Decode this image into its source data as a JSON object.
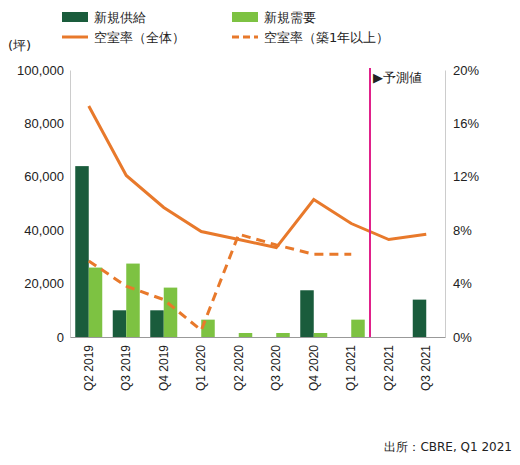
{
  "chart_data": {
    "type": "bar",
    "y_label": "(坪)",
    "source": "出所：CBRE, Q1 2021",
    "legend": "top",
    "grid": false,
    "categories": [
      "Q2 2019",
      "Q3 2019",
      "Q4 2019",
      "Q1 2020",
      "Q2 2020",
      "Q3 2020",
      "Q4 2020",
      "Q1 2021",
      "Q2 2021",
      "Q3 2021"
    ],
    "ylim": [
      0,
      100000
    ],
    "yticks": [
      0,
      {
        "value": 20000,
        "label": "20,000"
      },
      {
        "value": 40000,
        "label": "40,000"
      },
      {
        "value": 60000,
        "label": "60,000"
      },
      {
        "value": 80000,
        "label": "80,000"
      },
      {
        "value": 100000,
        "label": "100,000"
      }
    ],
    "y2lim": [
      0,
      20
    ],
    "y2ticks": [
      {
        "value": 0,
        "label": "0%"
      },
      {
        "value": 4,
        "label": "4%"
      },
      {
        "value": 8,
        "label": "8%"
      },
      {
        "value": 12,
        "label": "12%"
      },
      {
        "value": 16,
        "label": "16%"
      },
      {
        "value": 20,
        "label": "20%"
      }
    ],
    "annotations": [
      {
        "text": "▶予測値",
        "x": "Q2 2021"
      }
    ],
    "series": [
      {
        "name": "新規供給",
        "type": "bar",
        "color": "#1a5c3c",
        "values": [
          64000,
          10000,
          10000,
          0,
          0,
          0,
          17500,
          0,
          0,
          14000
        ]
      },
      {
        "name": "新規需要",
        "type": "bar",
        "color": "#7dc242",
        "values": [
          26000,
          27500,
          18500,
          6500,
          1500,
          1500,
          1500,
          6500,
          null,
          null
        ]
      },
      {
        "name": "空室率（全体）",
        "type": "line",
        "axis": "y2",
        "color": "#e8792b",
        "line_style": "solid",
        "values": [
          17.3,
          12.1,
          9.7,
          7.9,
          7.3,
          6.7,
          10.3,
          8.5,
          7.3,
          7.7
        ]
      },
      {
        "name": "空室率（築1年以上）",
        "type": "line",
        "axis": "y2",
        "color": "#e8792b",
        "line_style": "dashed",
        "values": [
          5.7,
          3.8,
          2.8,
          0.5,
          7.7,
          6.9,
          6.2,
          6.2,
          null,
          null
        ]
      }
    ]
  }
}
